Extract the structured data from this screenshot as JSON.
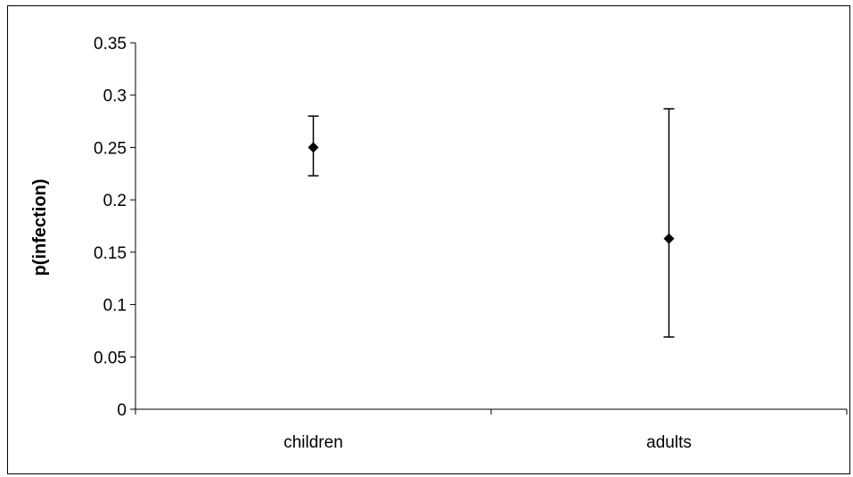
{
  "chart_data": {
    "type": "scatter",
    "title": "",
    "xlabel": "",
    "ylabel": "p(infection)",
    "categories": [
      "children",
      "adults"
    ],
    "values": [
      0.25,
      0.163
    ],
    "error_low": [
      0.223,
      0.069
    ],
    "error_high": [
      0.28,
      0.287
    ],
    "ylim": [
      0,
      0.35
    ],
    "yticks": [
      "0",
      "0.05",
      "0.1",
      "0.15",
      "0.2",
      "0.25",
      "0.3",
      "0.35"
    ],
    "grid": false,
    "legend": "none",
    "marker": "diamond",
    "color": "#000000"
  }
}
